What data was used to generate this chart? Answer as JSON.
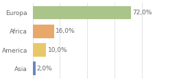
{
  "categories": [
    "Asia",
    "America",
    "Africa",
    "Europa"
  ],
  "values": [
    2.0,
    10.0,
    16.0,
    72.0
  ],
  "bar_colors": [
    "#6b84c4",
    "#e8c96a",
    "#e8a86a",
    "#aac48a"
  ],
  "labels": [
    "2,0%",
    "10,0%",
    "16,0%",
    "72,0%"
  ],
  "xlim": [
    0,
    100
  ],
  "background_color": "#ffffff",
  "bar_height": 0.72,
  "label_fontsize": 6.5,
  "tick_fontsize": 6.5,
  "grid_color": "#d8d8d8",
  "text_color": "#666666"
}
